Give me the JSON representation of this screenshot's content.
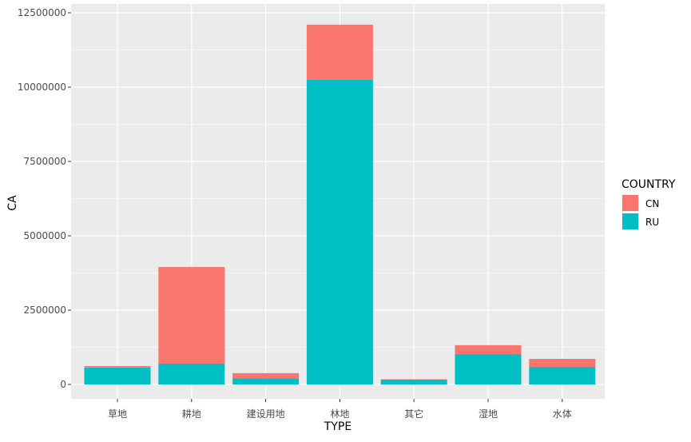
{
  "chart_data": {
    "type": "bar",
    "stacked": true,
    "categories": [
      "草地",
      "耕地",
      "建设用地",
      "林地",
      "其它",
      "湿地",
      "水体"
    ],
    "series": [
      {
        "name": "CN",
        "values": [
          50000,
          3250000,
          170000,
          1850000,
          15000,
          300000,
          270000
        ]
      },
      {
        "name": "RU",
        "values": [
          570000,
          700000,
          210000,
          10250000,
          160000,
          1020000,
          590000
        ]
      }
    ],
    "xlabel": "TYPE",
    "ylabel": "CA",
    "ylim": [
      0,
      12500000
    ],
    "yticks": [
      0,
      2500000,
      5000000,
      7500000,
      10000000,
      12500000
    ],
    "ytick_labels": [
      "0",
      "2500000",
      "5000000",
      "7500000",
      "10000000",
      "12500000"
    ],
    "legend": {
      "title": "COUNTRY",
      "placement": "right",
      "entries": [
        "CN",
        "RU"
      ]
    },
    "colors": {
      "CN": "#F8766D",
      "RU": "#00BFC4",
      "panel": "#EBEBEB",
      "grid": "#FFFFFF"
    },
    "grid": true
  }
}
